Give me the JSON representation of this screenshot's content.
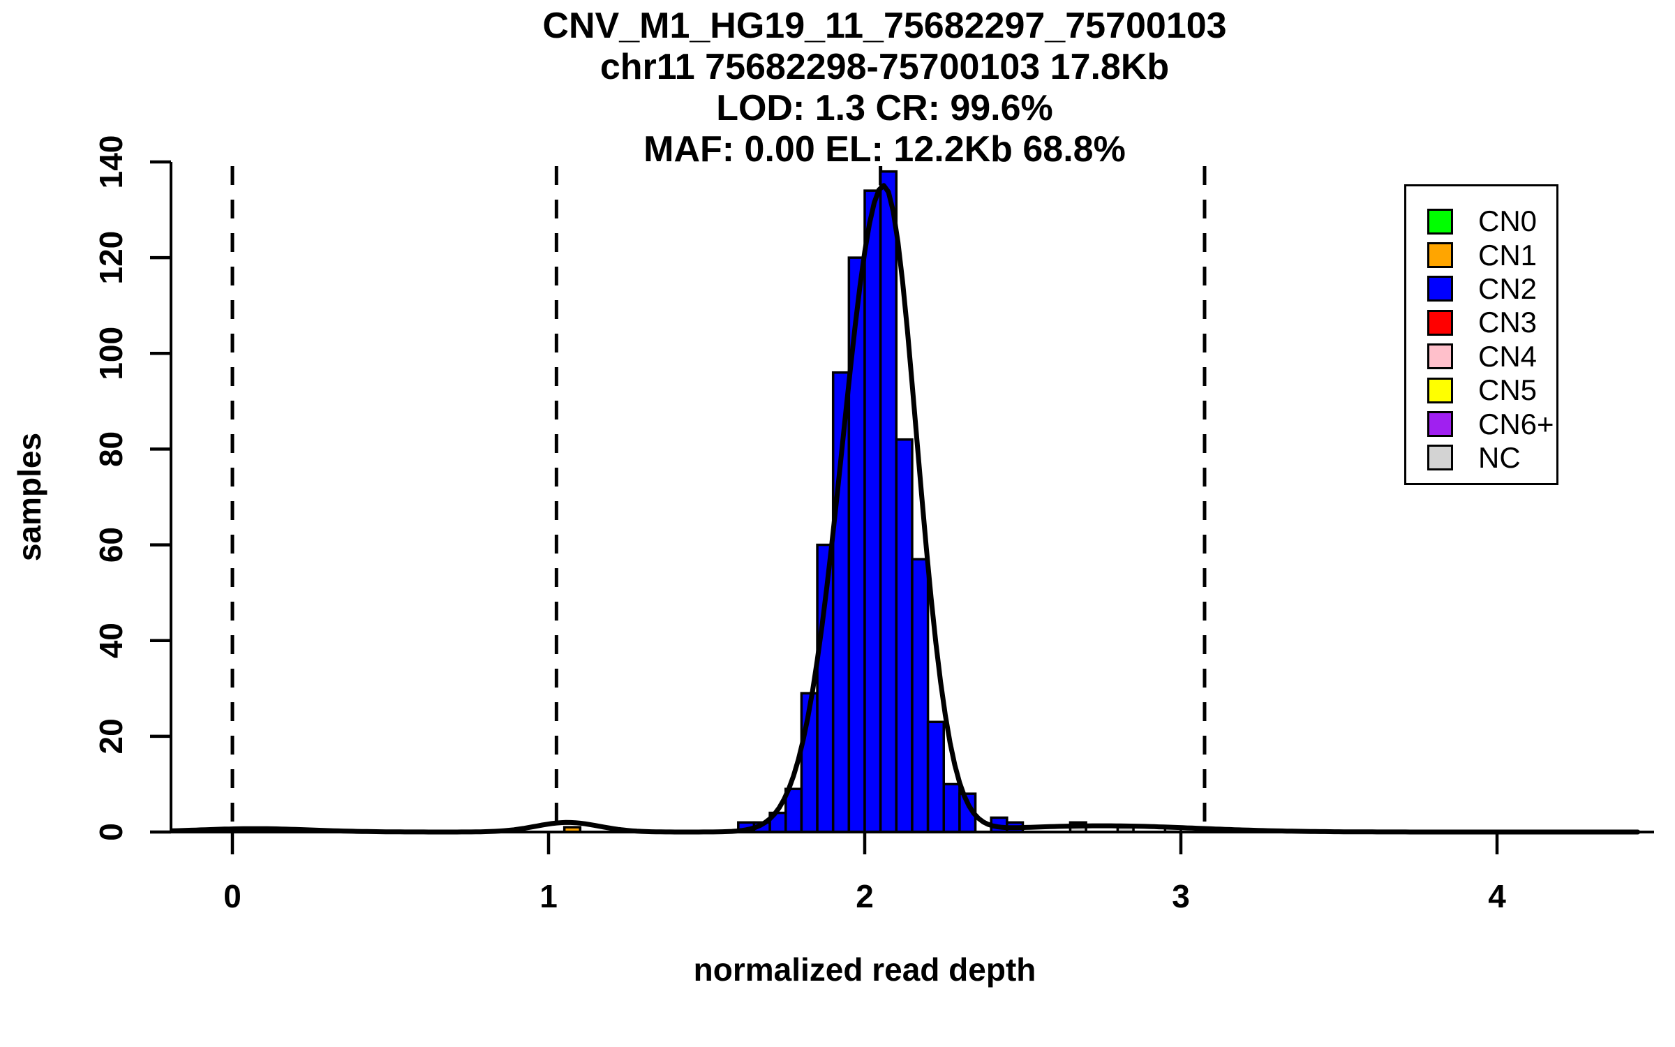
{
  "title": {
    "line1": "CNV_M1_HG19_11_75682297_75700103",
    "line2": "chr11 75682298-75700103 17.8Kb",
    "line3": "LOD: 1.3 CR: 99.6%",
    "line4": "MAF: 0.00 EL: 12.2Kb 68.8%"
  },
  "chart_data": {
    "type": "bar",
    "subtype": "histogram-with-density-fit",
    "title": "CNV_M1_HG19_11_75682297_75700103 / chr11 75682298-75700103 17.8Kb / LOD: 1.3 CR: 99.6% / MAF: 0.00 EL: 12.2Kb 68.8%",
    "xlabel": "normalized read depth",
    "ylabel": "samples",
    "xlim": [
      -0.19,
      4.45
    ],
    "ylim": [
      0,
      140
    ],
    "x_ticks": [
      0,
      1,
      2,
      3,
      4
    ],
    "y_ticks": [
      0,
      20,
      40,
      60,
      80,
      100,
      120,
      140
    ],
    "grid": false,
    "legend_position": "top-right",
    "bin_width": 0.05,
    "bars": [
      {
        "x": 1.05,
        "count": 1,
        "cn": "CN1"
      },
      {
        "x": 1.6,
        "count": 2,
        "cn": "CN2"
      },
      {
        "x": 1.65,
        "count": 2,
        "cn": "CN2"
      },
      {
        "x": 1.7,
        "count": 4,
        "cn": "CN2"
      },
      {
        "x": 1.75,
        "count": 9,
        "cn": "CN2"
      },
      {
        "x": 1.8,
        "count": 29,
        "cn": "CN2"
      },
      {
        "x": 1.85,
        "count": 60,
        "cn": "CN2"
      },
      {
        "x": 1.9,
        "count": 96,
        "cn": "CN2"
      },
      {
        "x": 1.95,
        "count": 120,
        "cn": "CN2"
      },
      {
        "x": 2.0,
        "count": 134,
        "cn": "CN2"
      },
      {
        "x": 2.05,
        "count": 138,
        "cn": "CN2"
      },
      {
        "x": 2.1,
        "count": 82,
        "cn": "CN2"
      },
      {
        "x": 2.15,
        "count": 57,
        "cn": "CN2"
      },
      {
        "x": 2.2,
        "count": 23,
        "cn": "CN2"
      },
      {
        "x": 2.25,
        "count": 10,
        "cn": "CN2"
      },
      {
        "x": 2.3,
        "count": 8,
        "cn": "CN2"
      },
      {
        "x": 2.4,
        "count": 3,
        "cn": "CN2"
      },
      {
        "x": 2.45,
        "count": 2,
        "cn": "CN2"
      },
      {
        "x": 2.65,
        "count": 2,
        "cn": "NC"
      },
      {
        "x": 2.8,
        "count": 1,
        "cn": "NC"
      },
      {
        "x": 2.95,
        "count": 1,
        "cn": "NC"
      }
    ],
    "dashed_lines_x": [
      0,
      1.025,
      2.05,
      3.075
    ],
    "fit_curve": {
      "components": [
        {
          "a": 135,
          "mu": 2.06,
          "sigma_left": 0.129,
          "sigma_right": 0.105
        },
        {
          "a": 2,
          "mu": 1.06,
          "sigma_left": 0.1,
          "sigma_right": 0.1
        },
        {
          "a": 1.3,
          "mu": 2.75,
          "sigma_left": 0.3,
          "sigma_right": 0.3
        },
        {
          "a": 0.7,
          "mu": 0.07,
          "sigma_left": 0.18,
          "sigma_right": 0.18
        }
      ]
    },
    "colors": {
      "CN0": "#00FF00",
      "CN1": "#FFA500",
      "CN2": "#0000FF",
      "CN3": "#FF0000",
      "CN4": "#FFC0CB",
      "CN5": "#FFFF00",
      "CN6+": "#A020F0",
      "NC": "#D3D3D3"
    },
    "axis_color": "#000000",
    "bar_border_color": "#000000",
    "curve_color": "#000000"
  },
  "legend": {
    "items": [
      {
        "label": "CN0",
        "color": "#00FF00"
      },
      {
        "label": "CN1",
        "color": "#FFA500"
      },
      {
        "label": "CN2",
        "color": "#0000FF"
      },
      {
        "label": "CN3",
        "color": "#FF0000"
      },
      {
        "label": "CN4",
        "color": "#FFC0CB"
      },
      {
        "label": "CN5",
        "color": "#FFFF00"
      },
      {
        "label": "CN6+",
        "color": "#A020F0"
      },
      {
        "label": "NC",
        "color": "#D3D3D3"
      }
    ]
  }
}
